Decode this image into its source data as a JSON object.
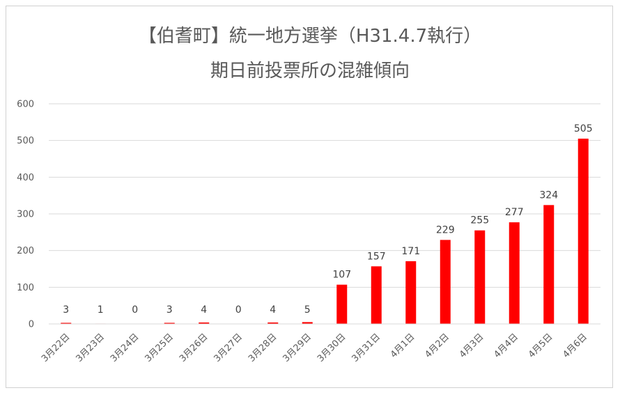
{
  "chart_data": {
    "type": "bar",
    "title": "【伯耆町】統一地方選挙（H31.4.7執行）",
    "subtitle": "期日前投票所の混雑傾向",
    "categories": [
      "3月22日",
      "3月23日",
      "3月24日",
      "3月25日",
      "3月26日",
      "3月27日",
      "3月28日",
      "3月29日",
      "3月30日",
      "3月31日",
      "4月1日",
      "4月2日",
      "4月3日",
      "4月4日",
      "4月5日",
      "4月6日"
    ],
    "values": [
      3,
      1,
      0,
      3,
      4,
      0,
      4,
      5,
      107,
      157,
      171,
      229,
      255,
      277,
      324,
      505
    ],
    "ylim": [
      0,
      600
    ],
    "yticks": [
      0,
      100,
      200,
      300,
      400,
      500,
      600
    ],
    "grid": true,
    "legend": "none",
    "bar_color": "#ff0000",
    "grid_color": "#d9d9d9"
  }
}
